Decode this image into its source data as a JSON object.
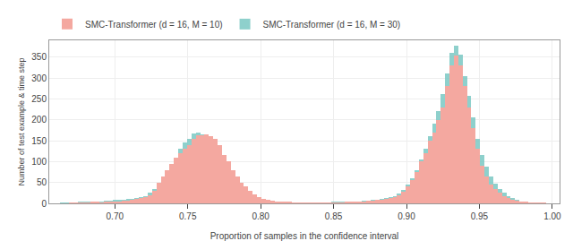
{
  "chart_data": {
    "type": "bar",
    "title": "",
    "x_label": "Proportion of samples in the confidence interval",
    "y_label": "Number of test example & time step",
    "x": [
      0.658,
      0.661,
      0.664,
      0.667,
      0.67,
      0.673,
      0.676,
      0.679,
      0.682,
      0.685,
      0.688,
      0.691,
      0.694,
      0.697,
      0.7,
      0.703,
      0.706,
      0.709,
      0.712,
      0.715,
      0.718,
      0.721,
      0.724,
      0.727,
      0.73,
      0.733,
      0.736,
      0.739,
      0.742,
      0.745,
      0.748,
      0.751,
      0.754,
      0.757,
      0.76,
      0.763,
      0.766,
      0.769,
      0.772,
      0.775,
      0.778,
      0.781,
      0.784,
      0.787,
      0.79,
      0.793,
      0.796,
      0.799,
      0.802,
      0.805,
      0.808,
      0.811,
      0.814,
      0.817,
      0.82,
      0.823,
      0.826,
      0.829,
      0.832,
      0.835,
      0.838,
      0.841,
      0.844,
      0.847,
      0.85,
      0.853,
      0.856,
      0.859,
      0.862,
      0.865,
      0.868,
      0.871,
      0.874,
      0.877,
      0.88,
      0.883,
      0.886,
      0.889,
      0.892,
      0.895,
      0.898,
      0.901,
      0.904,
      0.907,
      0.91,
      0.913,
      0.916,
      0.919,
      0.922,
      0.925,
      0.928,
      0.931,
      0.934,
      0.937,
      0.94,
      0.943,
      0.946,
      0.949,
      0.952,
      0.955,
      0.958,
      0.961,
      0.964,
      0.967,
      0.97,
      0.973,
      0.976,
      0.979,
      0.982,
      0.985,
      0.988,
      0.991,
      0.994,
      0.997,
      1.0
    ],
    "series": [
      {
        "name": "SMC-Transformer (d = 16, M = 10)",
        "color": "#F4A8A0",
        "values": [
          0,
          0,
          0,
          0,
          1,
          1,
          1,
          2,
          2,
          3,
          3,
          2,
          3,
          4,
          5,
          5,
          6,
          7,
          8,
          10,
          12,
          15,
          20,
          30,
          50,
          65,
          80,
          95,
          110,
          120,
          130,
          140,
          155,
          163,
          162,
          165,
          160,
          155,
          140,
          115,
          100,
          80,
          65,
          50,
          40,
          30,
          22,
          16,
          10,
          8,
          6,
          5,
          4,
          3,
          3,
          2,
          2,
          1,
          1,
          1,
          1,
          1,
          1,
          1,
          2,
          2,
          2,
          3,
          3,
          4,
          4,
          5,
          6,
          7,
          8,
          9,
          10,
          12,
          15,
          20,
          28,
          40,
          55,
          75,
          100,
          120,
          150,
          170,
          200,
          230,
          280,
          330,
          353,
          330,
          280,
          230,
          180,
          130,
          90,
          65,
          45,
          35,
          25,
          18,
          12,
          8,
          6,
          4,
          3,
          2,
          1,
          1,
          1,
          0,
          0
        ]
      },
      {
        "name": "SMC-Transformer (d = 16, M = 30)",
        "color": "#7BC8C4",
        "values": [
          0,
          0,
          1,
          1,
          2,
          2,
          3,
          3,
          4,
          5,
          5,
          5,
          6,
          7,
          8,
          8,
          9,
          10,
          11,
          12,
          14,
          18,
          25,
          35,
          50,
          65,
          80,
          95,
          110,
          130,
          145,
          155,
          168,
          170,
          165,
          160,
          155,
          145,
          130,
          112,
          95,
          78,
          60,
          48,
          38,
          28,
          20,
          14,
          10,
          8,
          6,
          5,
          4,
          3,
          2,
          2,
          2,
          2,
          2,
          2,
          2,
          2,
          2,
          2,
          3,
          3,
          3,
          4,
          4,
          5,
          5,
          6,
          7,
          8,
          9,
          10,
          12,
          15,
          18,
          24,
          32,
          45,
          60,
          80,
          105,
          130,
          160,
          190,
          220,
          262,
          310,
          360,
          378,
          355,
          305,
          258,
          205,
          155,
          115,
          88,
          65,
          48,
          35,
          25,
          17,
          12,
          8,
          5,
          3,
          2,
          1,
          1,
          0,
          0,
          0
        ]
      }
    ],
    "xlim": [
      0.655,
      1.005
    ],
    "ylim": [
      0,
      390
    ],
    "xticks": [
      {
        "value": 0.7,
        "label": "0.70"
      },
      0.75,
      {
        "value": 0.8,
        "label": "0.80"
      },
      0.85,
      {
        "value": 0.9,
        "label": "0.90"
      },
      0.95,
      {
        "value": 1.0,
        "label": "1.00"
      }
    ],
    "yticks": [
      0,
      50,
      100,
      150,
      200,
      250,
      300,
      350
    ],
    "grid": true,
    "legend": "upper left"
  }
}
